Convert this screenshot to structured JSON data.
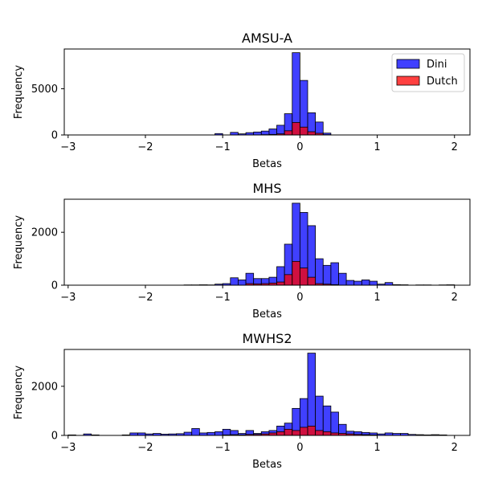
{
  "chart_data": [
    {
      "type": "bar",
      "title": "AMSU-A",
      "xlabel": "Betas",
      "ylabel": "Frequency",
      "xlim": [
        -3.05,
        2.2
      ],
      "ylim": [
        0,
        9300
      ],
      "xticks": [
        -3,
        -2,
        -1,
        0,
        1,
        2
      ],
      "yticks": [
        0,
        5000
      ],
      "bin_width": 0.1,
      "legend": {
        "position": "top-right"
      },
      "series": [
        {
          "name": "Dini",
          "color": "#0000ff",
          "bins": [
            {
              "x": -1.1,
              "y": 150
            },
            {
              "x": -0.9,
              "y": 280
            },
            {
              "x": -0.8,
              "y": 120
            },
            {
              "x": -0.7,
              "y": 250
            },
            {
              "x": -0.6,
              "y": 320
            },
            {
              "x": -0.5,
              "y": 420
            },
            {
              "x": -0.4,
              "y": 650
            },
            {
              "x": -0.3,
              "y": 1050
            },
            {
              "x": -0.2,
              "y": 2300
            },
            {
              "x": -0.1,
              "y": 8900
            },
            {
              "x": 0.0,
              "y": 5900
            },
            {
              "x": 0.1,
              "y": 2400
            },
            {
              "x": 0.2,
              "y": 1400
            },
            {
              "x": 0.3,
              "y": 200
            }
          ]
        },
        {
          "name": "Dutch",
          "color": "#ff0000",
          "bins": [
            {
              "x": -0.5,
              "y": 30
            },
            {
              "x": -0.4,
              "y": 60
            },
            {
              "x": -0.3,
              "y": 120
            },
            {
              "x": -0.2,
              "y": 450
            },
            {
              "x": -0.1,
              "y": 1350
            },
            {
              "x": 0.0,
              "y": 850
            },
            {
              "x": 0.1,
              "y": 350
            },
            {
              "x": 0.2,
              "y": 180
            },
            {
              "x": 0.3,
              "y": 30
            }
          ]
        }
      ]
    },
    {
      "type": "bar",
      "title": "MHS",
      "xlabel": "Betas",
      "ylabel": "Frequency",
      "xlim": [
        -3.05,
        2.2
      ],
      "ylim": [
        0,
        3250
      ],
      "xticks": [
        -3,
        -2,
        -1,
        0,
        1,
        2
      ],
      "yticks": [
        0,
        2000
      ],
      "bin_width": 0.1,
      "series": [
        {
          "name": "Dini",
          "color": "#0000ff",
          "bins": [
            {
              "x": -1.5,
              "y": 10
            },
            {
              "x": -1.4,
              "y": 10
            },
            {
              "x": -1.3,
              "y": 15
            },
            {
              "x": -1.2,
              "y": 10
            },
            {
              "x": -1.1,
              "y": 40
            },
            {
              "x": -1.0,
              "y": 60
            },
            {
              "x": -0.9,
              "y": 280
            },
            {
              "x": -0.8,
              "y": 200
            },
            {
              "x": -0.7,
              "y": 450
            },
            {
              "x": -0.6,
              "y": 250
            },
            {
              "x": -0.5,
              "y": 250
            },
            {
              "x": -0.4,
              "y": 300
            },
            {
              "x": -0.3,
              "y": 700
            },
            {
              "x": -0.2,
              "y": 1550
            },
            {
              "x": -0.1,
              "y": 3100
            },
            {
              "x": 0.0,
              "y": 2750
            },
            {
              "x": 0.1,
              "y": 2250
            },
            {
              "x": 0.2,
              "y": 1000
            },
            {
              "x": 0.3,
              "y": 750
            },
            {
              "x": 0.4,
              "y": 850
            },
            {
              "x": 0.5,
              "y": 450
            },
            {
              "x": 0.6,
              "y": 180
            },
            {
              "x": 0.7,
              "y": 150
            },
            {
              "x": 0.8,
              "y": 200
            },
            {
              "x": 0.9,
              "y": 150
            },
            {
              "x": 1.0,
              "y": 40
            },
            {
              "x": 1.1,
              "y": 100
            },
            {
              "x": 1.2,
              "y": 20
            },
            {
              "x": 1.3,
              "y": 15
            },
            {
              "x": 1.5,
              "y": 10
            },
            {
              "x": 1.6,
              "y": 10
            },
            {
              "x": 1.8,
              "y": 10
            },
            {
              "x": 1.9,
              "y": 15
            }
          ]
        },
        {
          "name": "Dutch",
          "color": "#ff0000",
          "bins": [
            {
              "x": -0.7,
              "y": 60
            },
            {
              "x": -0.6,
              "y": 50
            },
            {
              "x": -0.5,
              "y": 60
            },
            {
              "x": -0.4,
              "y": 80
            },
            {
              "x": -0.3,
              "y": 120
            },
            {
              "x": -0.2,
              "y": 400
            },
            {
              "x": -0.1,
              "y": 900
            },
            {
              "x": 0.0,
              "y": 650
            },
            {
              "x": 0.1,
              "y": 300
            },
            {
              "x": 0.2,
              "y": 60
            },
            {
              "x": 0.3,
              "y": 40
            },
            {
              "x": 0.4,
              "y": 20
            }
          ]
        }
      ]
    },
    {
      "type": "bar",
      "title": "MWHS2",
      "xlabel": "Betas",
      "ylabel": "Frequency",
      "xlim": [
        -3.05,
        2.2
      ],
      "ylim": [
        0,
        3500
      ],
      "xticks": [
        -3,
        -2,
        -1,
        0,
        1,
        2
      ],
      "yticks": [
        0,
        2000
      ],
      "bin_width": 0.1,
      "series": [
        {
          "name": "Dini",
          "color": "#0000ff",
          "bins": [
            {
              "x": -3.0,
              "y": 20
            },
            {
              "x": -2.8,
              "y": 60
            },
            {
              "x": -2.7,
              "y": 20
            },
            {
              "x": -2.3,
              "y": 20
            },
            {
              "x": -2.2,
              "y": 100
            },
            {
              "x": -2.1,
              "y": 100
            },
            {
              "x": -2.0,
              "y": 60
            },
            {
              "x": -1.9,
              "y": 80
            },
            {
              "x": -1.8,
              "y": 50
            },
            {
              "x": -1.7,
              "y": 60
            },
            {
              "x": -1.6,
              "y": 70
            },
            {
              "x": -1.5,
              "y": 130
            },
            {
              "x": -1.4,
              "y": 280
            },
            {
              "x": -1.3,
              "y": 100
            },
            {
              "x": -1.2,
              "y": 120
            },
            {
              "x": -1.1,
              "y": 150
            },
            {
              "x": -1.0,
              "y": 250
            },
            {
              "x": -0.9,
              "y": 200
            },
            {
              "x": -0.8,
              "y": 80
            },
            {
              "x": -0.7,
              "y": 200
            },
            {
              "x": -0.6,
              "y": 80
            },
            {
              "x": -0.5,
              "y": 150
            },
            {
              "x": -0.4,
              "y": 200
            },
            {
              "x": -0.3,
              "y": 380
            },
            {
              "x": -0.2,
              "y": 500
            },
            {
              "x": -0.1,
              "y": 1100
            },
            {
              "x": 0.0,
              "y": 1500
            },
            {
              "x": 0.1,
              "y": 3350
            },
            {
              "x": 0.2,
              "y": 1600
            },
            {
              "x": 0.3,
              "y": 1200
            },
            {
              "x": 0.4,
              "y": 950
            },
            {
              "x": 0.5,
              "y": 450
            },
            {
              "x": 0.6,
              "y": 170
            },
            {
              "x": 0.7,
              "y": 150
            },
            {
              "x": 0.8,
              "y": 120
            },
            {
              "x": 0.9,
              "y": 100
            },
            {
              "x": 1.0,
              "y": 60
            },
            {
              "x": 1.1,
              "y": 100
            },
            {
              "x": 1.2,
              "y": 80
            },
            {
              "x": 1.3,
              "y": 80
            },
            {
              "x": 1.4,
              "y": 40
            },
            {
              "x": 1.5,
              "y": 30
            },
            {
              "x": 1.6,
              "y": 20
            },
            {
              "x": 1.7,
              "y": 30
            },
            {
              "x": 1.8,
              "y": 20
            }
          ]
        },
        {
          "name": "Dutch",
          "color": "#ff0000",
          "bins": [
            {
              "x": -1.0,
              "y": 20
            },
            {
              "x": -0.9,
              "y": 30
            },
            {
              "x": -0.8,
              "y": 20
            },
            {
              "x": -0.7,
              "y": 40
            },
            {
              "x": -0.6,
              "y": 40
            },
            {
              "x": -0.5,
              "y": 60
            },
            {
              "x": -0.4,
              "y": 100
            },
            {
              "x": -0.3,
              "y": 150
            },
            {
              "x": -0.2,
              "y": 250
            },
            {
              "x": -0.1,
              "y": 200
            },
            {
              "x": 0.0,
              "y": 330
            },
            {
              "x": 0.1,
              "y": 380
            },
            {
              "x": 0.2,
              "y": 200
            },
            {
              "x": 0.3,
              "y": 150
            },
            {
              "x": 0.4,
              "y": 100
            },
            {
              "x": 0.5,
              "y": 80
            },
            {
              "x": 0.6,
              "y": 60
            },
            {
              "x": 0.7,
              "y": 40
            },
            {
              "x": 0.8,
              "y": 30
            },
            {
              "x": 0.9,
              "y": 20
            }
          ]
        }
      ]
    }
  ]
}
